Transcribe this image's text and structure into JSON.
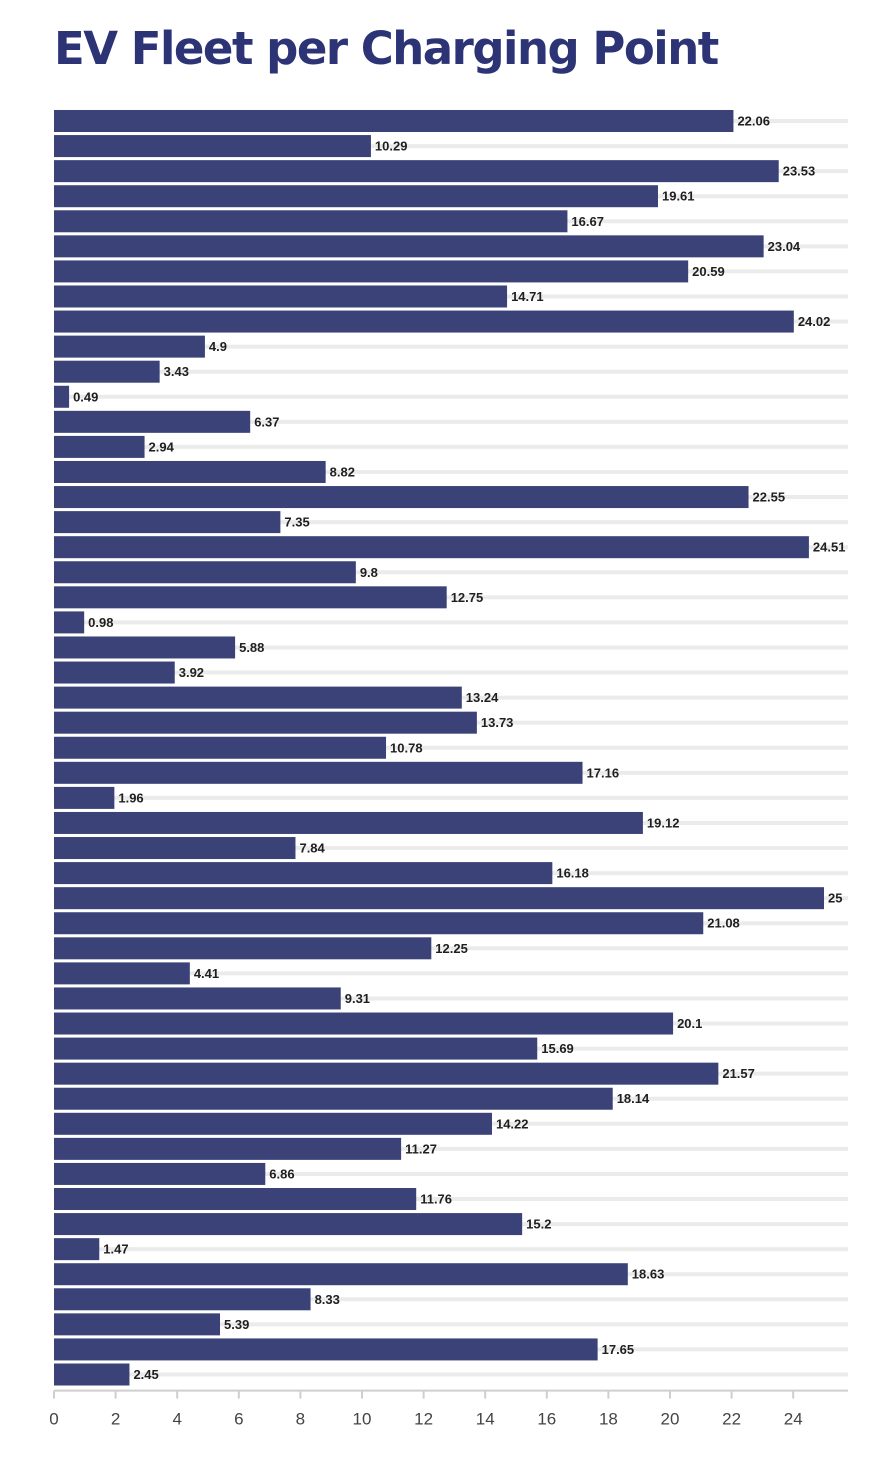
{
  "chart_data": {
    "type": "bar",
    "orientation": "horizontal",
    "title": "EV Fleet per Charging Point",
    "xlabel": "",
    "ylabel": "",
    "xlim": [
      0,
      25.8
    ],
    "x_ticks": [
      0,
      2,
      4,
      6,
      8,
      10,
      12,
      14,
      16,
      18,
      20,
      22,
      24
    ],
    "grid": true,
    "bar_color": "#3a4278",
    "values": [
      22.06,
      10.29,
      23.53,
      19.61,
      16.67,
      23.04,
      20.59,
      14.71,
      24.02,
      4.9,
      3.43,
      0.49,
      6.37,
      2.94,
      8.82,
      22.55,
      7.35,
      24.51,
      9.8,
      12.75,
      0.98,
      5.88,
      3.92,
      13.24,
      13.73,
      10.78,
      17.16,
      1.96,
      19.12,
      7.84,
      16.18,
      25,
      21.08,
      12.25,
      4.41,
      9.31,
      20.1,
      15.69,
      21.57,
      18.14,
      14.22,
      11.27,
      6.86,
      11.76,
      15.2,
      1.47,
      18.63,
      8.33,
      5.39,
      17.65,
      2.45
    ]
  }
}
